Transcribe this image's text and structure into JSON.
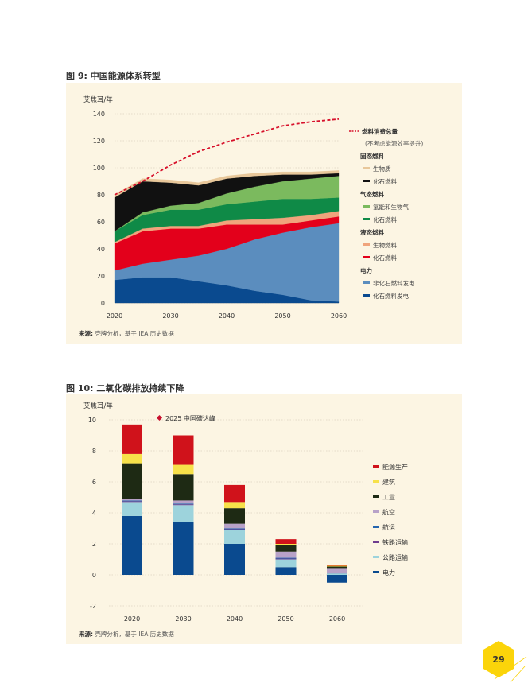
{
  "figure9": {
    "title": "图 9: 中国能源体系转型",
    "source_label": "来源:",
    "source_text": " 壳牌分析，基于 IEA 历史数据"
  },
  "figure10": {
    "title": "图 10: 二氧化碳排放持续下降",
    "source_label": "来源:",
    "source_text": " 壳牌分析，基于 IEA 历史数据"
  },
  "page_number": "29",
  "chart_data": [
    {
      "type": "area",
      "title": "图 9: 中国能源体系转型",
      "ylabel": "艾焦耳/年",
      "xlabel": "",
      "ylim": [
        0,
        140
      ],
      "yticks": [
        "0",
        "20",
        "40",
        "60",
        "80",
        "100",
        "120",
        "140"
      ],
      "xticks": [
        "2020",
        "2030",
        "2040",
        "2050",
        "2060"
      ],
      "x": [
        2020,
        2025,
        2030,
        2035,
        2040,
        2045,
        2050,
        2055,
        2060
      ],
      "stacked": true,
      "series": [
        {
          "name": "化石燃料发电",
          "color": "#0a4a8f",
          "values": [
            17,
            19,
            19,
            16,
            13,
            9,
            6,
            2,
            1
          ]
        },
        {
          "name": "非化石燃料发电",
          "color": "#5b8dbe",
          "values": [
            7,
            10,
            13,
            19,
            27,
            38,
            46,
            54,
            58
          ]
        },
        {
          "name": "化石燃料(液态)",
          "color": "#e3001b",
          "values": [
            20,
            24,
            23,
            20,
            18,
            11,
            6,
            5,
            5
          ]
        },
        {
          "name": "生物燃料",
          "color": "#f0a47c",
          "values": [
            1,
            2,
            2,
            2,
            3,
            4,
            5,
            4,
            4
          ]
        },
        {
          "name": "化石燃料(气态)",
          "color": "#0f8a47",
          "values": [
            8,
            10,
            12,
            12,
            12,
            13,
            14,
            12,
            10
          ]
        },
        {
          "name": "氢能和生物气",
          "color": "#7bba5e",
          "values": [
            0,
            2,
            3,
            5,
            8,
            11,
            13,
            15,
            16
          ]
        },
        {
          "name": "化石燃料(固态)",
          "color": "#111111",
          "values": [
            25,
            23,
            17,
            13,
            11,
            8,
            5,
            3,
            2
          ]
        },
        {
          "name": "生物质",
          "color": "#e8c79a",
          "values": [
            2,
            2,
            2,
            2,
            2,
            2,
            2,
            2,
            2
          ]
        }
      ],
      "line": {
        "name": "燃料消费总量",
        "note": "(不考虑能源效率提升)",
        "color": "#d7102b",
        "values": [
          80,
          90,
          102,
          112,
          119,
          125,
          131,
          134,
          136
        ]
      },
      "legend": {
        "total_label": "燃料消费总量",
        "total_note": "(不考虑能源效率提升)",
        "groups": [
          {
            "title": "固态燃料",
            "items": [
              {
                "label": "生物质",
                "color": "#e8c79a"
              },
              {
                "label": "化石燃料",
                "color": "#111111"
              }
            ]
          },
          {
            "title": "气态燃料",
            "items": [
              {
                "label": "氢能和生物气",
                "color": "#7bba5e"
              },
              {
                "label": "化石燃料",
                "color": "#0f8a47"
              }
            ]
          },
          {
            "title": "液态燃料",
            "items": [
              {
                "label": "生物燃料",
                "color": "#f0a47c"
              },
              {
                "label": "化石燃料",
                "color": "#e3001b"
              }
            ]
          },
          {
            "title": "电力",
            "items": [
              {
                "label": "非化石燃料发电",
                "color": "#5b8dbe"
              },
              {
                "label": "化石燃料发电",
                "color": "#0a4a8f"
              }
            ]
          }
        ]
      }
    },
    {
      "type": "bar",
      "stacked": true,
      "title": "图 10: 二氧化碳排放持续下降",
      "ylabel": "艾焦耳/年",
      "ylim": [
        -2,
        10
      ],
      "yticks": [
        "-2",
        "0",
        "2",
        "4",
        "6",
        "8",
        "10"
      ],
      "categories": [
        "2020",
        "2030",
        "2040",
        "2050",
        "2060"
      ],
      "annotation": "2025 中国碳达峰",
      "annotation_color": "#c8102e",
      "series": [
        {
          "name": "电力",
          "color": "#0a4a8f",
          "values": [
            3.8,
            3.4,
            2.0,
            0.5,
            -0.5
          ]
        },
        {
          "name": "公路运输",
          "color": "#9dd3dc",
          "values": [
            0.9,
            1.1,
            0.9,
            0.5,
            0.1
          ]
        },
        {
          "name": "铁路运输",
          "color": "#6f3d8f",
          "values": [
            0.05,
            0.05,
            0.05,
            0.05,
            0.02
          ]
        },
        {
          "name": "航运",
          "color": "#2565ae",
          "values": [
            0.05,
            0.05,
            0.05,
            0.05,
            0.02
          ]
        },
        {
          "name": "航空",
          "color": "#b8a2c8",
          "values": [
            0.1,
            0.2,
            0.3,
            0.4,
            0.3
          ]
        },
        {
          "name": "工业",
          "color": "#1e2a14",
          "values": [
            2.3,
            1.7,
            1.0,
            0.4,
            0.1
          ]
        },
        {
          "name": "建筑",
          "color": "#f7e14a",
          "values": [
            0.6,
            0.6,
            0.4,
            0.1,
            0.05
          ]
        },
        {
          "name": "能源生产",
          "color": "#d0121b",
          "values": [
            1.9,
            1.9,
            1.1,
            0.3,
            0.05
          ]
        }
      ],
      "legend_order": [
        "能源生产",
        "建筑",
        "工业",
        "航空",
        "航运",
        "铁路运输",
        "公路运输",
        "电力"
      ]
    }
  ]
}
